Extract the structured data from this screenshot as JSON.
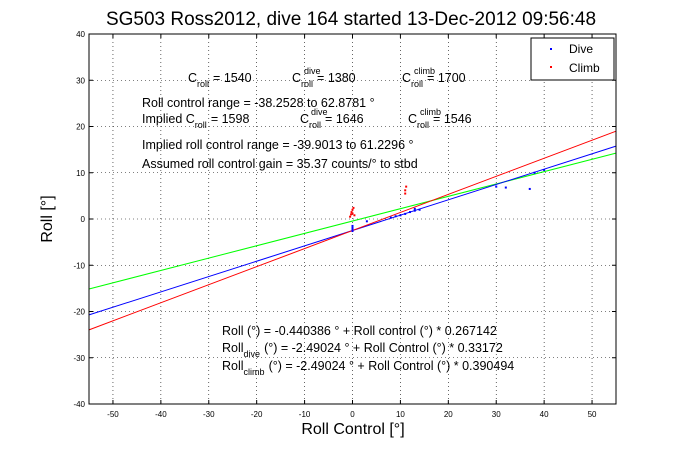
{
  "chart_data": {
    "type": "scatter",
    "title": "SG503 Ross2012, dive 164 started 13-Dec-2012 09:56:48",
    "xlabel": "Roll Control [°]",
    "ylabel": "Roll [°]",
    "xlim": [
      -55,
      55
    ],
    "ylim": [
      -40,
      40
    ],
    "xticks": [
      -50,
      -40,
      -30,
      -20,
      -10,
      0,
      10,
      20,
      30,
      40,
      50
    ],
    "yticks": [
      -40,
      -30,
      -20,
      -10,
      0,
      10,
      20,
      30,
      40
    ],
    "grid": true,
    "legend": {
      "position": "top-right"
    },
    "series": [
      {
        "name": "Dive",
        "color": "#0000ff",
        "points": [
          [
            0,
            -2.6
          ],
          [
            0,
            -2.2
          ],
          [
            0,
            -1.9
          ],
          [
            0,
            -1.5
          ],
          [
            3,
            -0.5
          ],
          [
            8,
            0.3
          ],
          [
            9,
            0.6
          ],
          [
            10,
            0.8
          ],
          [
            11,
            1.1
          ],
          [
            12,
            1.5
          ],
          [
            13,
            1.8
          ],
          [
            13,
            2.2
          ],
          [
            14,
            2.0
          ],
          [
            30,
            7.0
          ],
          [
            32,
            6.8
          ],
          [
            37,
            6.5
          ],
          [
            38,
            10.0
          ],
          [
            40,
            10.6
          ]
        ]
      },
      {
        "name": "Climb",
        "color": "#ff0000",
        "points": [
          [
            -0.5,
            0.5
          ],
          [
            -0.3,
            1.0
          ],
          [
            -0.2,
            1.5
          ],
          [
            0,
            2.0
          ],
          [
            0.2,
            2.4
          ],
          [
            0,
            1.2
          ],
          [
            0.4,
            0.8
          ],
          [
            11,
            5.5
          ],
          [
            11,
            6.2
          ],
          [
            11.2,
            7.0
          ]
        ]
      }
    ],
    "fit_lines": [
      {
        "color": "#00ff00",
        "intercept": -0.440386,
        "slope": 0.267142
      },
      {
        "color": "#0000ff",
        "intercept": -2.49024,
        "slope": 0.33172
      },
      {
        "color": "#ff0000",
        "intercept": -2.49024,
        "slope": 0.390494
      }
    ],
    "annotations": {
      "croll_row": [
        {
          "base": "C",
          "sup": "",
          "sub": "roll",
          "value": "= 1540"
        },
        {
          "base": "C",
          "sup": "dive",
          "sub": "roll",
          "value": "= 1380"
        },
        {
          "base": "C",
          "sup": "climb",
          "sub": "roll",
          "value": "= 1700"
        }
      ],
      "roll_control_range": "Roll control range = -38.2528 to 62.8781 °",
      "implied_row": [
        {
          "base": "Implied C",
          "sup": "",
          "sub": "roll",
          "value": "= 1598"
        },
        {
          "base": "C",
          "sup": "dive",
          "sub": "roll",
          "value": "= 1646"
        },
        {
          "base": "C",
          "sup": "climb",
          "sub": "roll",
          "value": "= 1546"
        }
      ],
      "implied_range": "Implied roll control range = -39.9013 to 61.2296 °",
      "gain": "Assumed roll control gain = 35.37 counts/° to stbd",
      "eq_all": "Roll (°) = -0.440386 ° + Roll control (°) * 0.267142",
      "eq_dive": "(°) = -2.49024 ° + Roll Control (°) * 0.33172",
      "eq_climb": "(°) = -2.49024 ° + Roll Control (°) * 0.390494",
      "eq_prefix": "Roll",
      "eq_dive_sub": "dive",
      "eq_climb_sub": "climb"
    }
  }
}
